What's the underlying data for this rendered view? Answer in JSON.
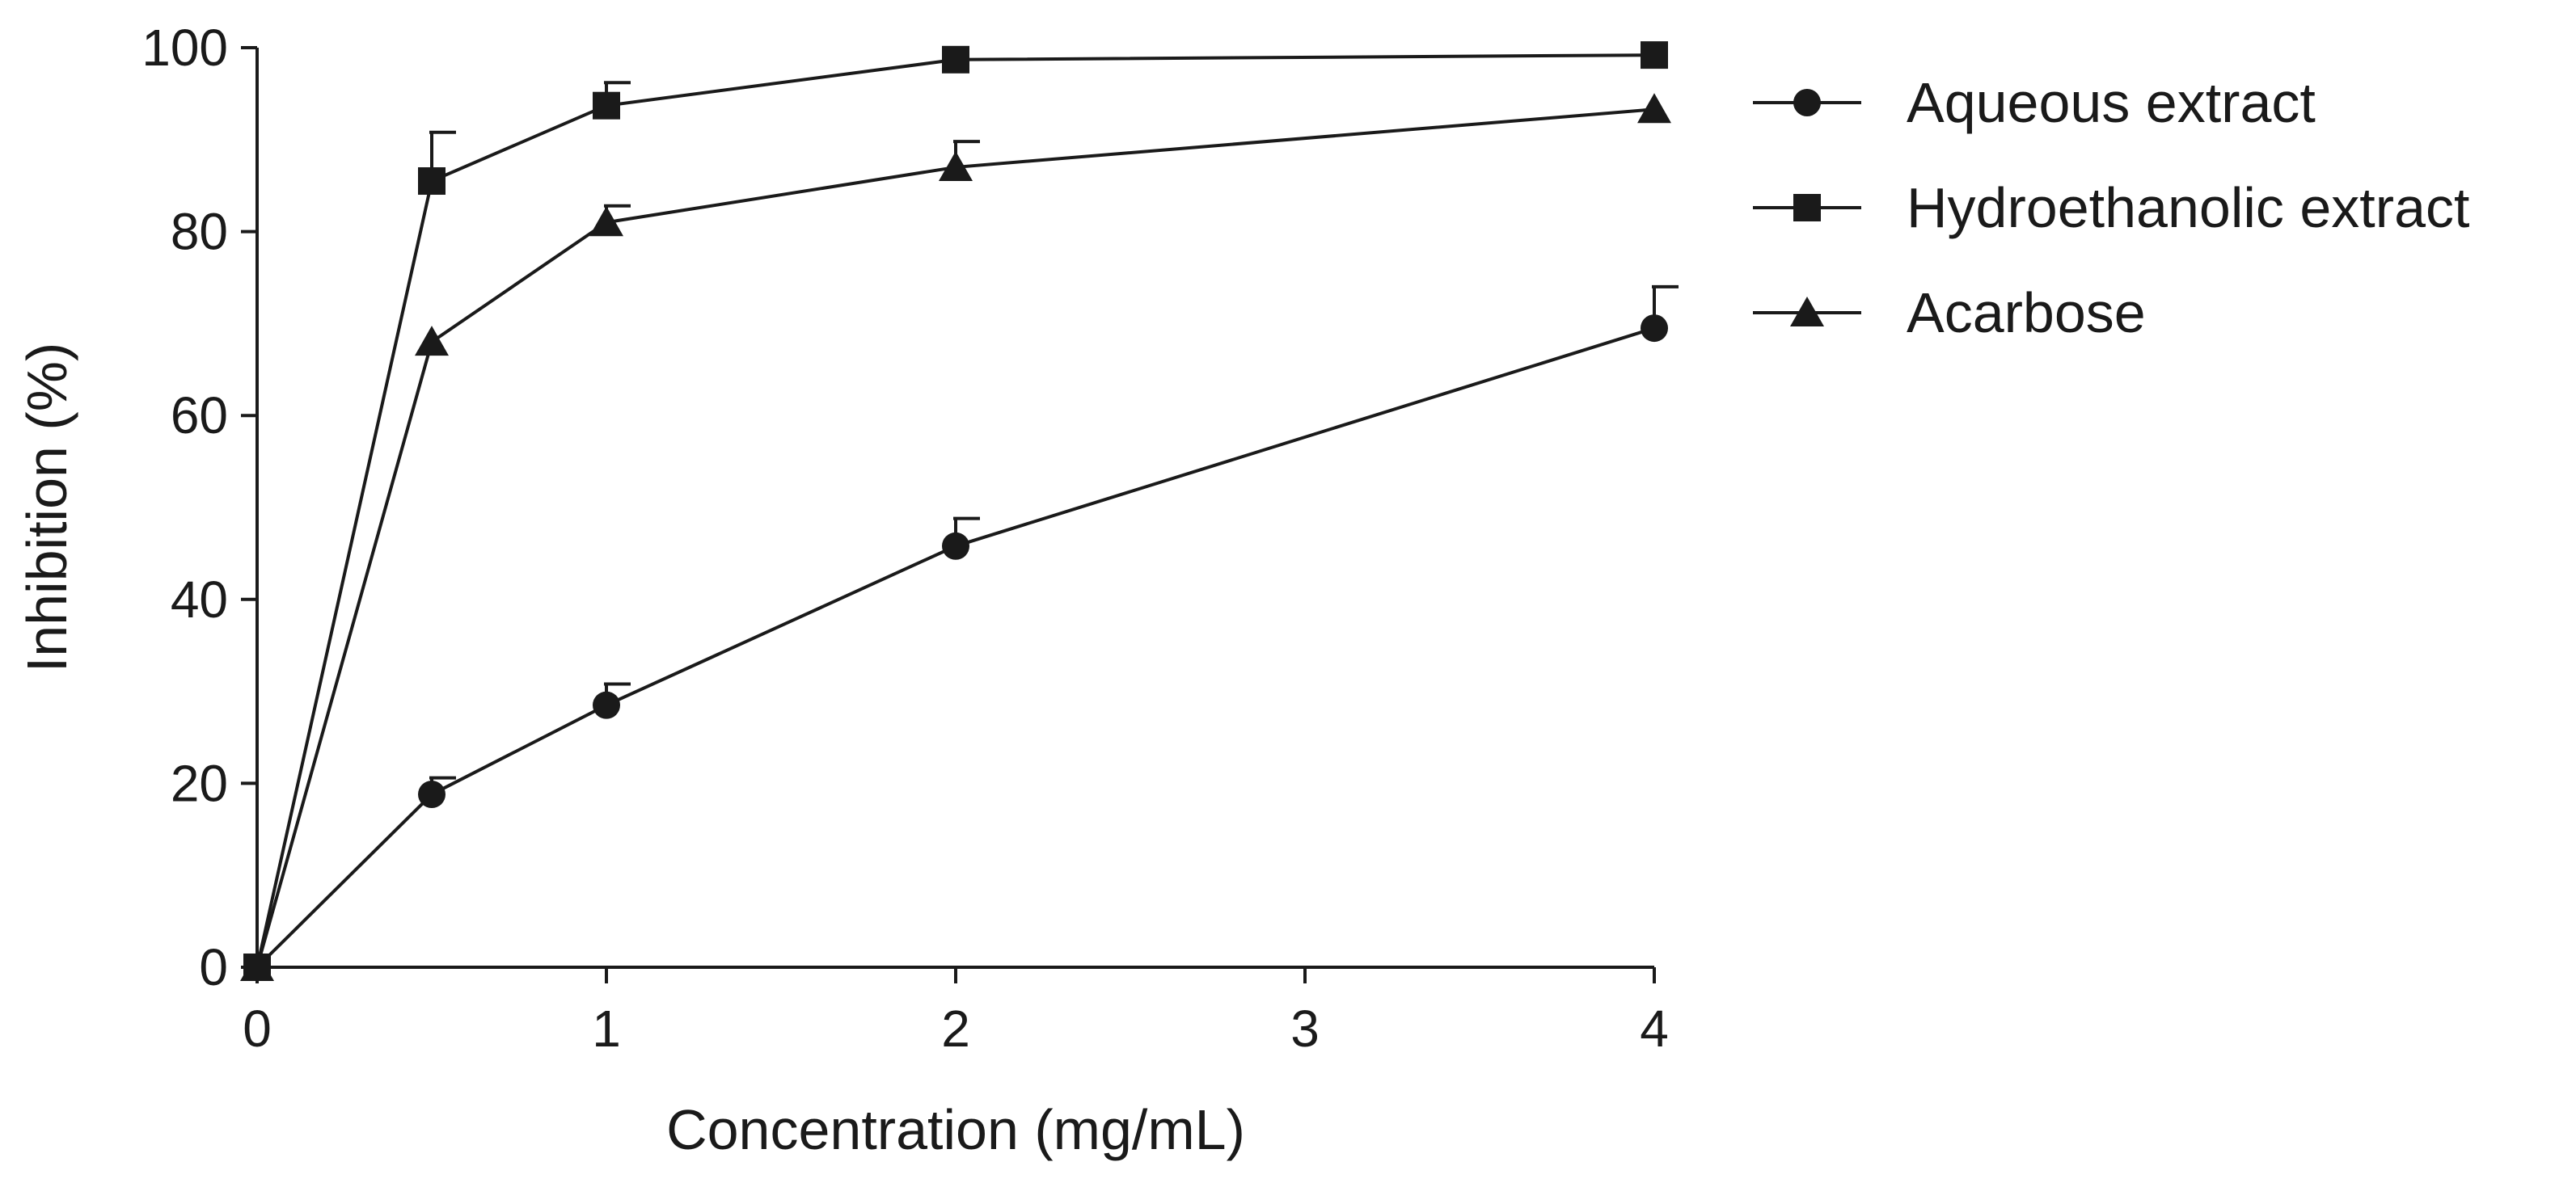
{
  "chart_data": {
    "type": "line",
    "title": "",
    "xlabel": "Concentration (mg/mL)",
    "ylabel": "Inhibition (%)",
    "x": [
      0,
      0.5,
      1,
      2,
      4
    ],
    "xticks": [
      0,
      1,
      2,
      3,
      4
    ],
    "xtick_labels": [
      "0",
      "1",
      "2",
      "3",
      "4"
    ],
    "yticks": [
      0,
      20,
      40,
      60,
      80,
      100
    ],
    "ytick_labels": [
      "0",
      "20",
      "40",
      "60",
      "80",
      "100"
    ],
    "xlim": [
      0,
      4
    ],
    "ylim": [
      0,
      100
    ],
    "grid": false,
    "legend_position": "right",
    "series": [
      {
        "name": "Aqueous extract",
        "marker": "circle",
        "values": [
          0,
          18.8,
          28.5,
          45.8,
          69.5
        ],
        "error": [
          0,
          1.8,
          2.3,
          3.0,
          4.5
        ]
      },
      {
        "name": "Hydroethanolic extract",
        "marker": "square",
        "values": [
          0,
          85.5,
          93.7,
          98.7,
          99.2
        ],
        "error": [
          0,
          5.3,
          2.5,
          0,
          0
        ]
      },
      {
        "name": "Acarbose",
        "marker": "triangle",
        "values": [
          0,
          68.0,
          81.0,
          87.0,
          93.3
        ],
        "error": [
          0,
          0,
          1.8,
          2.8,
          0
        ]
      }
    ],
    "colors": {
      "line": "#1a1a1a",
      "marker": "#1a1a1a",
      "background": "#ffffff"
    }
  }
}
